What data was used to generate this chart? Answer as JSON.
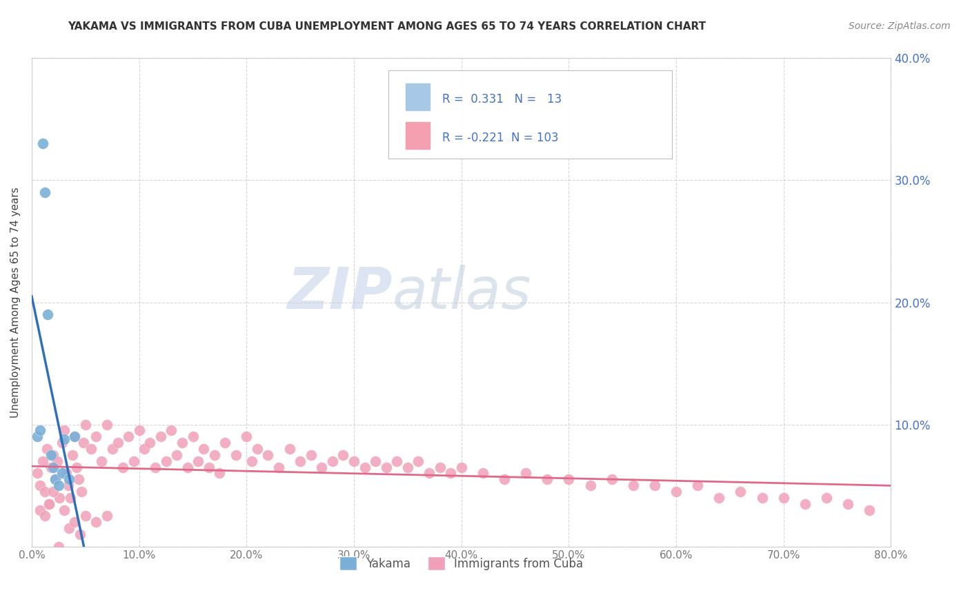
{
  "title": "YAKAMA VS IMMIGRANTS FROM CUBA UNEMPLOYMENT AMONG AGES 65 TO 74 YEARS CORRELATION CHART",
  "source_text": "Source: ZipAtlas.com",
  "ylabel": "Unemployment Among Ages 65 to 74 years",
  "xlim": [
    0.0,
    0.8
  ],
  "ylim": [
    0.0,
    0.4
  ],
  "xticks": [
    0.0,
    0.1,
    0.2,
    0.3,
    0.4,
    0.5,
    0.6,
    0.7,
    0.8
  ],
  "yticks": [
    0.0,
    0.1,
    0.2,
    0.3,
    0.4
  ],
  "yakama_R": 0.331,
  "yakama_N": 13,
  "cuba_R": -0.221,
  "cuba_N": 103,
  "yakama_color": "#a8c8e8",
  "cuba_color": "#f4a0b0",
  "yakama_line_color": "#3070b8",
  "cuba_line_color": "#e06888",
  "yakama_dot_color": "#7ab0d8",
  "cuba_dot_color": "#f0a0b8",
  "watermark_zip": "ZIP",
  "watermark_atlas": "atlas",
  "legend_labels": [
    "Yakama",
    "Immigrants from Cuba"
  ],
  "title_color": "#333333",
  "source_color": "#888888",
  "yaxis_color": "#4472c4",
  "legend_text_color": "#4472c4",
  "grid_color": "#cccccc",
  "yakama_x": [
    0.005,
    0.008,
    0.01,
    0.012,
    0.015,
    0.018,
    0.02,
    0.022,
    0.025,
    0.028,
    0.03,
    0.035,
    0.04
  ],
  "yakama_y": [
    0.09,
    0.095,
    0.33,
    0.29,
    0.19,
    0.075,
    0.065,
    0.055,
    0.05,
    0.06,
    0.088,
    0.055,
    0.09
  ],
  "cuba_x": [
    0.005,
    0.008,
    0.01,
    0.012,
    0.014,
    0.016,
    0.018,
    0.02,
    0.022,
    0.024,
    0.026,
    0.028,
    0.03,
    0.032,
    0.034,
    0.036,
    0.038,
    0.04,
    0.042,
    0.044,
    0.046,
    0.048,
    0.05,
    0.055,
    0.06,
    0.065,
    0.07,
    0.075,
    0.08,
    0.085,
    0.09,
    0.095,
    0.1,
    0.105,
    0.11,
    0.115,
    0.12,
    0.125,
    0.13,
    0.135,
    0.14,
    0.145,
    0.15,
    0.155,
    0.16,
    0.165,
    0.17,
    0.175,
    0.18,
    0.19,
    0.2,
    0.205,
    0.21,
    0.22,
    0.23,
    0.24,
    0.25,
    0.26,
    0.27,
    0.28,
    0.29,
    0.3,
    0.31,
    0.32,
    0.33,
    0.34,
    0.35,
    0.36,
    0.37,
    0.38,
    0.39,
    0.4,
    0.42,
    0.44,
    0.46,
    0.48,
    0.5,
    0.52,
    0.54,
    0.56,
    0.58,
    0.6,
    0.62,
    0.64,
    0.66,
    0.68,
    0.7,
    0.72,
    0.74,
    0.76,
    0.78,
    0.008,
    0.012,
    0.016,
    0.02,
    0.025,
    0.03,
    0.035,
    0.04,
    0.045,
    0.05,
    0.06,
    0.07
  ],
  "cuba_y": [
    0.06,
    0.05,
    0.07,
    0.045,
    0.08,
    0.035,
    0.065,
    0.075,
    0.055,
    0.07,
    0.04,
    0.085,
    0.095,
    0.06,
    0.05,
    0.04,
    0.075,
    0.09,
    0.065,
    0.055,
    0.045,
    0.085,
    0.1,
    0.08,
    0.09,
    0.07,
    0.1,
    0.08,
    0.085,
    0.065,
    0.09,
    0.07,
    0.095,
    0.08,
    0.085,
    0.065,
    0.09,
    0.07,
    0.095,
    0.075,
    0.085,
    0.065,
    0.09,
    0.07,
    0.08,
    0.065,
    0.075,
    0.06,
    0.085,
    0.075,
    0.09,
    0.07,
    0.08,
    0.075,
    0.065,
    0.08,
    0.07,
    0.075,
    0.065,
    0.07,
    0.075,
    0.07,
    0.065,
    0.07,
    0.065,
    0.07,
    0.065,
    0.07,
    0.06,
    0.065,
    0.06,
    0.065,
    0.06,
    0.055,
    0.06,
    0.055,
    0.055,
    0.05,
    0.055,
    0.05,
    0.05,
    0.045,
    0.05,
    0.04,
    0.045,
    0.04,
    0.04,
    0.035,
    0.04,
    0.035,
    0.03,
    0.03,
    0.025,
    0.035,
    0.045,
    0.0,
    0.03,
    0.015,
    0.02,
    0.01,
    0.025,
    0.02,
    0.025
  ]
}
